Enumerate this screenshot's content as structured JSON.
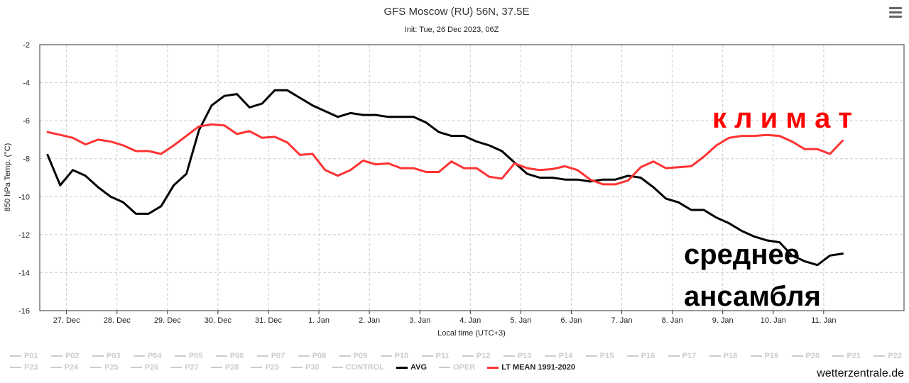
{
  "title": "GFS Moscow (RU) 56N, 37.5E",
  "subtitle": "Init: Tue, 26 Dec 2023, 06Z",
  "credit": "wetterzentrale.de",
  "annotations": {
    "climate": "к л и м а т",
    "ensemble_line1": "среднее",
    "ensemble_line2": "ансамбля"
  },
  "legend": {
    "row1": [
      "P01",
      "P02",
      "P03",
      "P04",
      "P05",
      "P06",
      "P07",
      "P08",
      "P09",
      "P10",
      "P11",
      "P12",
      "P13",
      "P14",
      "P15",
      "P16",
      "P17",
      "P18",
      "P19",
      "P20",
      "P21",
      "P22"
    ],
    "row2": [
      {
        "label": "P23",
        "active": false,
        "color": "#cccccc"
      },
      {
        "label": "P24",
        "active": false,
        "color": "#cccccc"
      },
      {
        "label": "P25",
        "active": false,
        "color": "#cccccc"
      },
      {
        "label": "P26",
        "active": false,
        "color": "#cccccc"
      },
      {
        "label": "P27",
        "active": false,
        "color": "#cccccc"
      },
      {
        "label": "P28",
        "active": false,
        "color": "#cccccc"
      },
      {
        "label": "P29",
        "active": false,
        "color": "#cccccc"
      },
      {
        "label": "P30",
        "active": false,
        "color": "#cccccc"
      },
      {
        "label": "CONTROL",
        "active": false,
        "color": "#cccccc"
      },
      {
        "label": "AVG",
        "active": true,
        "color": "#000000"
      },
      {
        "label": "OPER",
        "active": false,
        "color": "#cccccc"
      },
      {
        "label": "LT MEAN 1991-2020",
        "active": true,
        "color": "#ff3333"
      }
    ]
  },
  "chart_data": {
    "type": "line",
    "xlabel": "Local time (UTC+3)",
    "ylabel": "850 hPa Temp. (°C)",
    "ylim": [
      -16,
      -2
    ],
    "yticks": [
      -2,
      -4,
      -6,
      -8,
      -10,
      -12,
      -14,
      -16
    ],
    "x_tick_labels": [
      "27. Dec",
      "28. Dec",
      "29. Dec",
      "30. Dec",
      "31. Dec",
      "1. Jan",
      "2. Jan",
      "3. Jan",
      "4. Jan",
      "5. Jan",
      "6. Jan",
      "7. Jan",
      "8. Jan",
      "9. Jan",
      "10. Jan",
      "11. Jan"
    ],
    "x_range_steps": [
      0,
      70
    ],
    "x_first_tick_step": 1.5,
    "steps_per_day": 4,
    "grid": true,
    "series": [
      {
        "name": "AVG",
        "color": "#000000",
        "values": [
          -7.8,
          -9.4,
          -8.6,
          -8.9,
          -9.5,
          -10.0,
          -10.3,
          -10.9,
          -10.9,
          -10.5,
          -9.4,
          -8.8,
          -6.5,
          -5.2,
          -4.7,
          -4.6,
          -5.3,
          -5.1,
          -4.4,
          -4.4,
          -4.8,
          -5.2,
          -5.5,
          -5.8,
          -5.6,
          -5.7,
          -5.7,
          -5.8,
          -5.8,
          -5.8,
          -6.1,
          -6.6,
          -6.8,
          -6.8,
          -7.1,
          -7.3,
          -7.6,
          -8.2,
          -8.8,
          -9.0,
          -9.0,
          -9.1,
          -9.1,
          -9.2,
          -9.1,
          -9.1,
          -8.9,
          -9.0,
          -9.5,
          -10.1,
          -10.3,
          -10.7,
          -10.7,
          -11.1,
          -11.4,
          -11.8,
          -12.1,
          -12.3,
          -12.4,
          -13.1,
          -13.4,
          -13.6,
          -13.1,
          -13.0
        ]
      },
      {
        "name": "LT MEAN 1991-2020",
        "color": "#ff3333",
        "values": [
          -6.6,
          -6.75,
          -6.9,
          -7.25,
          -7.0,
          -7.1,
          -7.3,
          -7.6,
          -7.6,
          -7.75,
          -7.3,
          -6.8,
          -6.3,
          -6.2,
          -6.25,
          -6.7,
          -6.55,
          -6.9,
          -6.85,
          -7.15,
          -7.8,
          -7.75,
          -8.6,
          -8.9,
          -8.6,
          -8.1,
          -8.3,
          -8.25,
          -8.5,
          -8.5,
          -8.7,
          -8.7,
          -8.15,
          -8.5,
          -8.5,
          -8.95,
          -9.05,
          -8.25,
          -8.5,
          -8.6,
          -8.55,
          -8.4,
          -8.6,
          -9.1,
          -9.35,
          -9.35,
          -9.15,
          -8.45,
          -8.15,
          -8.5,
          -8.45,
          -8.4,
          -7.9,
          -7.3,
          -6.9,
          -6.8,
          -6.8,
          -6.75,
          -6.8,
          -7.1,
          -7.5,
          -7.5,
          -7.75,
          -7.05
        ]
      }
    ]
  }
}
